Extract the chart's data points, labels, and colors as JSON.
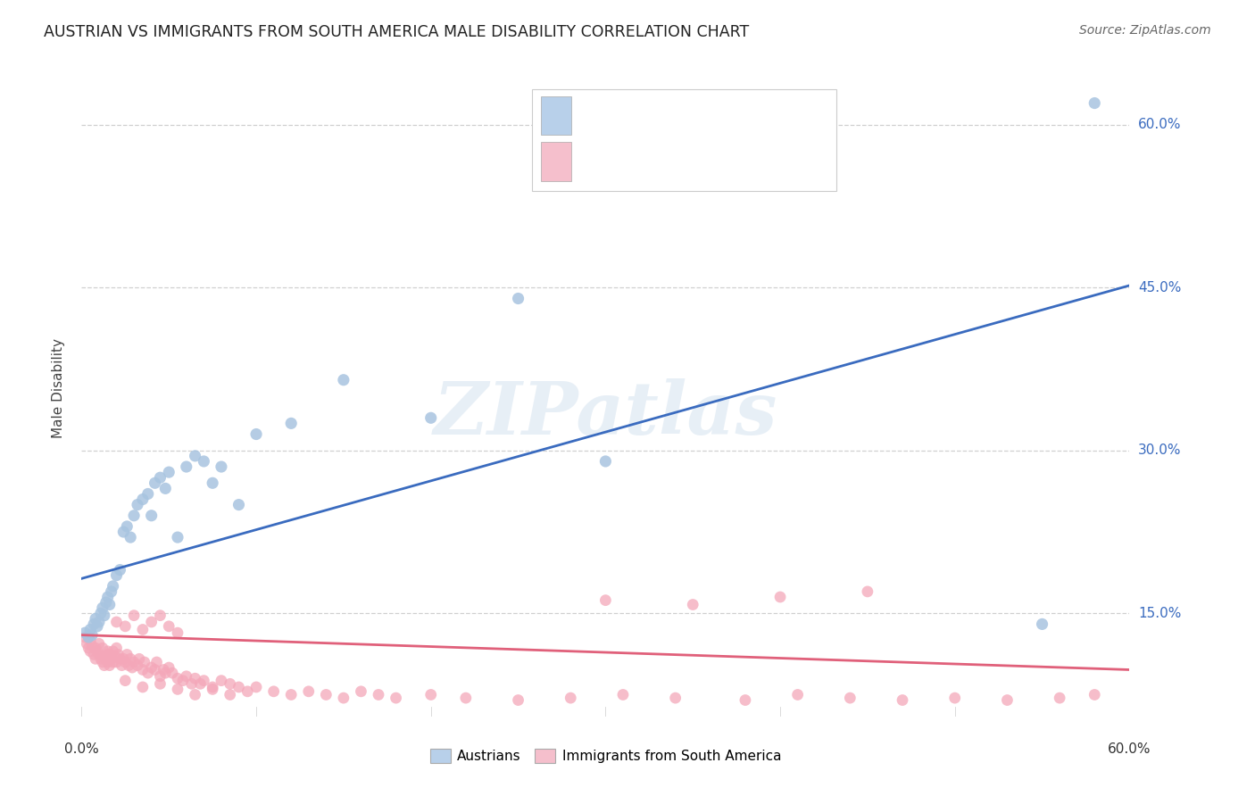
{
  "title": "AUSTRIAN VS IMMIGRANTS FROM SOUTH AMERICA MALE DISABILITY CORRELATION CHART",
  "source": "Source: ZipAtlas.com",
  "ylabel": "Male Disability",
  "legend_austrians": "Austrians",
  "legend_immigrants": "Immigrants from South America",
  "blue_color": "#a8c4e0",
  "blue_line_color": "#3a6bbf",
  "pink_color": "#f4a7b9",
  "pink_line_color": "#e0607a",
  "blue_legend_color": "#b8d0ea",
  "pink_legend_color": "#f5bfcc",
  "r_text_blue": "#3a6bbf",
  "r_text_pink": "#e0607a",
  "watermark": "ZIPatlas",
  "background_color": "#ffffff",
  "grid_color": "#d0d0d0",
  "ytick_labels": [
    "15.0%",
    "30.0%",
    "45.0%",
    "60.0%"
  ],
  "ytick_values": [
    0.15,
    0.3,
    0.45,
    0.6
  ],
  "xlim": [
    0.0,
    0.6
  ],
  "ylim": [
    0.055,
    0.66
  ],
  "blue_line_x0": 0.0,
  "blue_line_y0": 0.182,
  "blue_line_x1": 0.6,
  "blue_line_y1": 0.452,
  "pink_line_x0": 0.0,
  "pink_line_y0": 0.13,
  "pink_line_x1": 0.6,
  "pink_line_y1": 0.098,
  "blue_scatter_x": [
    0.002,
    0.004,
    0.005,
    0.006,
    0.007,
    0.008,
    0.009,
    0.01,
    0.011,
    0.012,
    0.013,
    0.014,
    0.015,
    0.016,
    0.017,
    0.018,
    0.02,
    0.022,
    0.024,
    0.026,
    0.028,
    0.03,
    0.032,
    0.035,
    0.038,
    0.04,
    0.042,
    0.045,
    0.048,
    0.05,
    0.055,
    0.06,
    0.065,
    0.07,
    0.075,
    0.08,
    0.09,
    0.1,
    0.12,
    0.15,
    0.2,
    0.25,
    0.3,
    0.55,
    0.58
  ],
  "blue_scatter_y": [
    0.132,
    0.128,
    0.135,
    0.13,
    0.14,
    0.145,
    0.138,
    0.142,
    0.15,
    0.155,
    0.148,
    0.16,
    0.165,
    0.158,
    0.17,
    0.175,
    0.185,
    0.19,
    0.225,
    0.23,
    0.22,
    0.24,
    0.25,
    0.255,
    0.26,
    0.24,
    0.27,
    0.275,
    0.265,
    0.28,
    0.22,
    0.285,
    0.295,
    0.29,
    0.27,
    0.285,
    0.25,
    0.315,
    0.325,
    0.365,
    0.33,
    0.44,
    0.29,
    0.14,
    0.62
  ],
  "pink_scatter_x": [
    0.002,
    0.003,
    0.004,
    0.005,
    0.005,
    0.006,
    0.007,
    0.008,
    0.008,
    0.009,
    0.01,
    0.01,
    0.011,
    0.012,
    0.012,
    0.013,
    0.013,
    0.014,
    0.015,
    0.015,
    0.016,
    0.016,
    0.017,
    0.018,
    0.018,
    0.019,
    0.02,
    0.02,
    0.021,
    0.022,
    0.023,
    0.024,
    0.025,
    0.026,
    0.027,
    0.028,
    0.029,
    0.03,
    0.032,
    0.033,
    0.035,
    0.036,
    0.038,
    0.04,
    0.042,
    0.043,
    0.045,
    0.047,
    0.048,
    0.05,
    0.052,
    0.055,
    0.058,
    0.06,
    0.063,
    0.065,
    0.068,
    0.07,
    0.075,
    0.08,
    0.085,
    0.09,
    0.095,
    0.1,
    0.11,
    0.12,
    0.13,
    0.14,
    0.15,
    0.16,
    0.17,
    0.18,
    0.2,
    0.22,
    0.25,
    0.28,
    0.31,
    0.34,
    0.38,
    0.41,
    0.44,
    0.47,
    0.5,
    0.53,
    0.56,
    0.58,
    0.3,
    0.35,
    0.4,
    0.45,
    0.015,
    0.02,
    0.025,
    0.03,
    0.035,
    0.04,
    0.045,
    0.05,
    0.055,
    0.025,
    0.035,
    0.045,
    0.055,
    0.065,
    0.075,
    0.085
  ],
  "pink_scatter_y": [
    0.128,
    0.122,
    0.118,
    0.125,
    0.115,
    0.12,
    0.112,
    0.118,
    0.108,
    0.115,
    0.122,
    0.112,
    0.108,
    0.118,
    0.105,
    0.11,
    0.102,
    0.108,
    0.115,
    0.105,
    0.112,
    0.102,
    0.108,
    0.115,
    0.105,
    0.11,
    0.118,
    0.105,
    0.112,
    0.108,
    0.102,
    0.108,
    0.105,
    0.112,
    0.102,
    0.108,
    0.1,
    0.105,
    0.102,
    0.108,
    0.098,
    0.105,
    0.095,
    0.1,
    0.098,
    0.105,
    0.092,
    0.098,
    0.095,
    0.1,
    0.095,
    0.09,
    0.088,
    0.092,
    0.085,
    0.09,
    0.085,
    0.088,
    0.082,
    0.088,
    0.085,
    0.082,
    0.078,
    0.082,
    0.078,
    0.075,
    0.078,
    0.075,
    0.072,
    0.078,
    0.075,
    0.072,
    0.075,
    0.072,
    0.07,
    0.072,
    0.075,
    0.072,
    0.07,
    0.075,
    0.072,
    0.07,
    0.072,
    0.07,
    0.072,
    0.075,
    0.162,
    0.158,
    0.165,
    0.17,
    0.112,
    0.142,
    0.138,
    0.148,
    0.135,
    0.142,
    0.148,
    0.138,
    0.132,
    0.088,
    0.082,
    0.085,
    0.08,
    0.075,
    0.08,
    0.075
  ]
}
